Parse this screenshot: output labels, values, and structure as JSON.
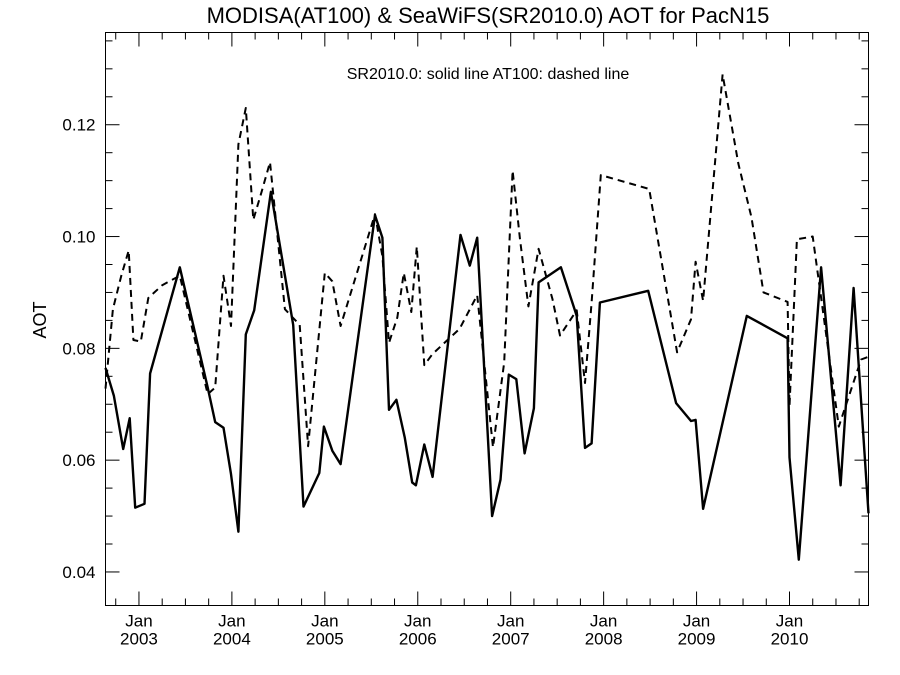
{
  "chart_data": {
    "type": "line",
    "title": "MODISA(AT100) & SeaWiFS(SR2010.0)  AOT for PacN15",
    "annotation": "SR2010.0: solid line   AT100: dashed line",
    "ylabel": "AOT",
    "xlabel": "",
    "xlim": [
      2002.64,
      2010.85
    ],
    "ylim": [
      0.034,
      0.1365
    ],
    "grid": false,
    "y_ticks": [
      {
        "value": 0.04,
        "label": "0.04"
      },
      {
        "value": 0.06,
        "label": "0.06"
      },
      {
        "value": 0.08,
        "label": "0.08"
      },
      {
        "value": 0.1,
        "label": "0.10"
      },
      {
        "value": 0.12,
        "label": "0.12"
      }
    ],
    "x_ticks": [
      {
        "value": 2003.0,
        "month": "Jan",
        "year": "2003"
      },
      {
        "value": 2004.0,
        "month": "Jan",
        "year": "2004"
      },
      {
        "value": 2005.0,
        "month": "Jan",
        "year": "2005"
      },
      {
        "value": 2006.0,
        "month": "Jan",
        "year": "2006"
      },
      {
        "value": 2007.0,
        "month": "Jan",
        "year": "2007"
      },
      {
        "value": 2008.0,
        "month": "Jan",
        "year": "2008"
      },
      {
        "value": 2009.0,
        "month": "Jan",
        "year": "2009"
      },
      {
        "value": 2010.0,
        "month": "Jan",
        "year": "2010"
      }
    ],
    "series": [
      {
        "key": "SR2010.0",
        "style": "solid",
        "color": "#000000",
        "x": [
          2002.64,
          2002.73,
          2002.83,
          2002.9,
          2002.96,
          2003.06,
          2003.12,
          2003.44,
          2003.74,
          2003.82,
          2003.91,
          2003.99,
          2004.07,
          2004.15,
          2004.24,
          2004.42,
          2004.66,
          2004.77,
          2004.94,
          2004.99,
          2005.08,
          2005.17,
          2005.54,
          2005.62,
          2005.69,
          2005.77,
          2005.86,
          2005.94,
          2005.98,
          2006.07,
          2006.16,
          2006.46,
          2006.56,
          2006.64,
          2006.8,
          2006.89,
          2006.98,
          2007.06,
          2007.15,
          2007.25,
          2007.3,
          2007.54,
          2007.71,
          2007.8,
          2007.87,
          2007.96,
          2008.48,
          2008.78,
          2008.94,
          2008.99,
          2009.07,
          2009.54,
          2009.98,
          2010.0,
          2010.1,
          2010.34,
          2010.55,
          2010.69,
          2010.85
        ],
        "y": [
          0.0765,
          0.0715,
          0.062,
          0.0675,
          0.0515,
          0.0522,
          0.0755,
          0.0945,
          0.073,
          0.0668,
          0.0658,
          0.0575,
          0.0472,
          0.0825,
          0.0868,
          0.108,
          0.0842,
          0.0517,
          0.0577,
          0.066,
          0.0617,
          0.0593,
          0.1038,
          0.0998,
          0.069,
          0.0708,
          0.064,
          0.056,
          0.0555,
          0.0628,
          0.057,
          0.1003,
          0.0948,
          0.0998,
          0.05,
          0.0565,
          0.0753,
          0.0745,
          0.0612,
          0.0693,
          0.0918,
          0.0945,
          0.0858,
          0.0622,
          0.063,
          0.0882,
          0.0903,
          0.0702,
          0.067,
          0.0672,
          0.0513,
          0.0858,
          0.0818,
          0.0605,
          0.0422,
          0.0945,
          0.0555,
          0.0908,
          0.0505
        ]
      },
      {
        "key": "AT100",
        "style": "dashed",
        "color": "#000000",
        "x": [
          2002.64,
          2002.72,
          2002.81,
          2002.89,
          2002.94,
          2003.02,
          2003.1,
          2003.25,
          2003.44,
          2003.74,
          2003.82,
          2003.91,
          2003.99,
          2004.07,
          2004.15,
          2004.23,
          2004.32,
          2004.41,
          2004.57,
          2004.73,
          2004.82,
          2005.0,
          2005.08,
          2005.17,
          2005.54,
          2005.62,
          2005.69,
          2005.78,
          2005.85,
          2005.93,
          2005.99,
          2006.07,
          2006.16,
          2006.45,
          2006.64,
          2006.81,
          2006.93,
          2007.02,
          2007.1,
          2007.19,
          2007.3,
          2007.45,
          2007.53,
          2007.71,
          2007.8,
          2007.87,
          2007.97,
          2008.49,
          2008.79,
          2008.94,
          2008.99,
          2009.07,
          2009.28,
          2009.45,
          2009.59,
          2009.72,
          2009.98,
          2010.0,
          2010.08,
          2010.25,
          2010.53,
          2010.77,
          2010.85
        ],
        "y": [
          0.0728,
          0.087,
          0.093,
          0.0975,
          0.0815,
          0.0812,
          0.089,
          0.0913,
          0.093,
          0.0718,
          0.073,
          0.093,
          0.084,
          0.1165,
          0.123,
          0.103,
          0.108,
          0.1133,
          0.087,
          0.0842,
          0.0625,
          0.0935,
          0.092,
          0.084,
          0.104,
          0.0965,
          0.081,
          0.0855,
          0.0935,
          0.0865,
          0.0982,
          0.077,
          0.079,
          0.0835,
          0.0895,
          0.0623,
          0.0775,
          0.1118,
          0.0995,
          0.0875,
          0.0978,
          0.0888,
          0.0823,
          0.0868,
          0.0738,
          0.0882,
          0.111,
          0.1085,
          0.0793,
          0.0852,
          0.0955,
          0.0885,
          0.129,
          0.113,
          0.1035,
          0.09,
          0.0883,
          0.0697,
          0.0995,
          0.1,
          0.066,
          0.078,
          0.0785
        ]
      }
    ]
  }
}
